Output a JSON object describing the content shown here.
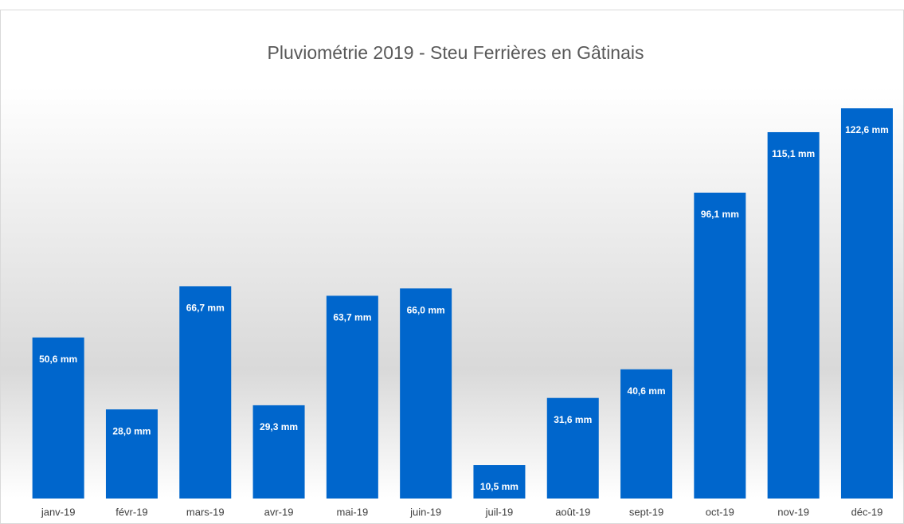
{
  "chart_data": {
    "type": "bar",
    "title": "Pluviométrie  2019 - Steu Ferrières en Gâtinais",
    "categories": [
      "janv-19",
      "févr-19",
      "mars-19",
      "avr-19",
      "mai-19",
      "juin-19",
      "juil-19",
      "août-19",
      "sept-19",
      "oct-19",
      "nov-19",
      "déc-19"
    ],
    "values": [
      50.6,
      28.0,
      66.7,
      29.3,
      63.7,
      66.0,
      10.5,
      31.6,
      40.6,
      96.1,
      115.1,
      122.6
    ],
    "value_labels": [
      "50,6 mm",
      "28,0 mm",
      "66,7 mm",
      "29,3 mm",
      "63,7 mm",
      "66,0 mm",
      "10,5 mm",
      "31,6 mm",
      "40,6 mm",
      "96,1 mm",
      "115,1 mm",
      "122,6 mm"
    ],
    "color": "#0066cc"
  }
}
